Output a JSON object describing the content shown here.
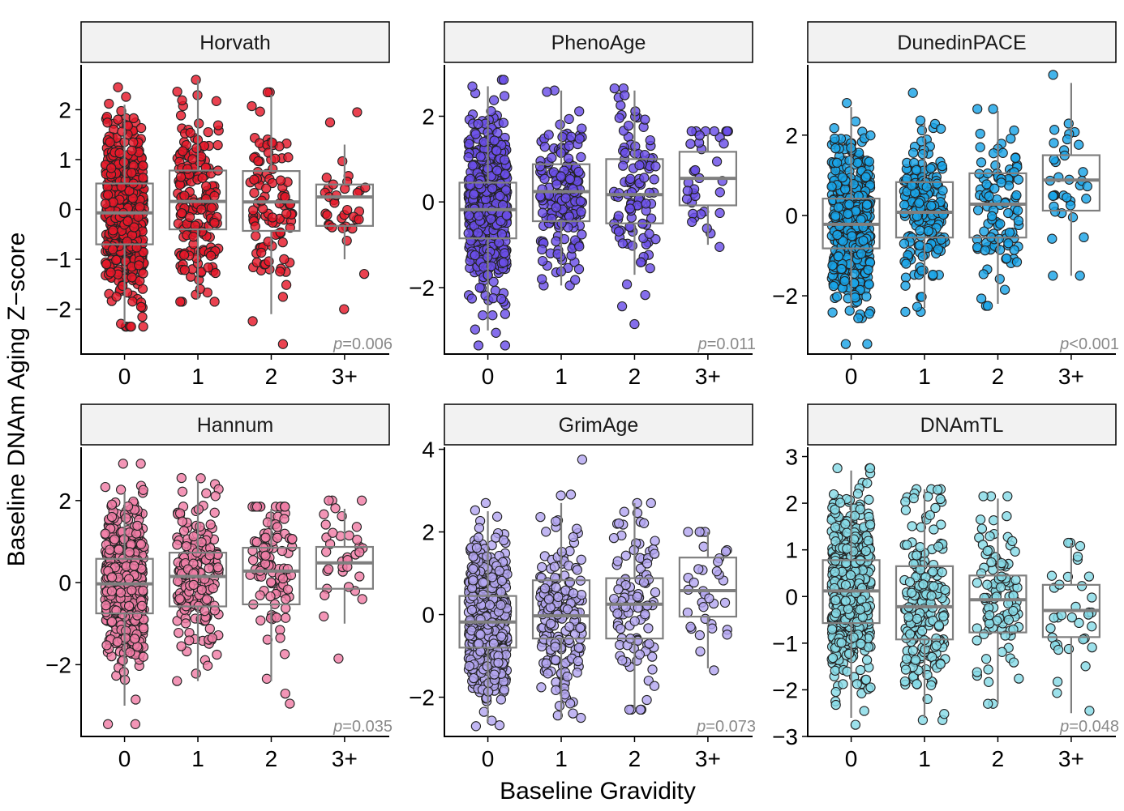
{
  "figure": {
    "ylabel": "Baseline DNAm Aging Z−score",
    "xlabel": "Baseline Gravidity"
  },
  "chart_data": [
    {
      "type": "box",
      "title": "Horvath",
      "categories": [
        "0",
        "1",
        "2",
        "3+"
      ],
      "ylim": [
        -2.9,
        2.9
      ],
      "yticks": [
        -2,
        -1,
        0,
        1,
        2
      ],
      "ytick_labels": [
        "−2",
        "−1",
        "0",
        "1",
        "2"
      ],
      "color": "#e5182a",
      "n_points": [
        520,
        180,
        100,
        35
      ],
      "boxes": [
        {
          "q1": -0.7,
          "median": -0.07,
          "q3": 0.52,
          "whisker_low": -2.3,
          "whisker_high": 2.1
        },
        {
          "q1": -0.4,
          "median": 0.16,
          "q3": 0.78,
          "whisker_low": -1.8,
          "whisker_high": 2.6
        },
        {
          "q1": -0.43,
          "median": 0.15,
          "q3": 0.77,
          "whisker_low": -2.1,
          "whisker_high": 2.3
        },
        {
          "q1": -0.33,
          "median": 0.25,
          "q3": 0.5,
          "whisker_low": -1.0,
          "whisker_high": 1.3
        }
      ],
      "extremes": [
        [
          -2.35,
          2.45
        ],
        [
          -1.85,
          2.6
        ],
        [
          -2.7,
          2.35
        ],
        [
          -2.0,
          1.95
        ]
      ],
      "p_prefix": "p",
      "p_text": "=0.006"
    },
    {
      "type": "box",
      "title": "PhenoAge",
      "categories": [
        "0",
        "1",
        "2",
        "3+"
      ],
      "ylim": [
        -3.55,
        3.2
      ],
      "yticks": [
        -2,
        0,
        2
      ],
      "ytick_labels": [
        "−2",
        "0",
        "2"
      ],
      "color": "#6a4ee8",
      "n_points": [
        520,
        180,
        100,
        35
      ],
      "boxes": [
        {
          "q1": -0.85,
          "median": -0.18,
          "q3": 0.45,
          "whisker_low": -3.0,
          "whisker_high": 2.7
        },
        {
          "q1": -0.45,
          "median": 0.24,
          "q3": 0.88,
          "whisker_low": -1.95,
          "whisker_high": 2.6
        },
        {
          "q1": -0.5,
          "median": 0.17,
          "q3": 1.0,
          "whisker_low": -1.7,
          "whisker_high": 2.6
        },
        {
          "q1": -0.08,
          "median": 0.55,
          "q3": 1.17,
          "whisker_low": -1.0,
          "whisker_high": 1.6
        }
      ],
      "extremes": [
        [
          -3.35,
          2.85
        ],
        [
          -1.95,
          2.6
        ],
        [
          -2.85,
          2.65
        ],
        [
          -1.05,
          1.65
        ]
      ],
      "p_prefix": "p",
      "p_text": "=0.011"
    },
    {
      "type": "box",
      "title": "DunedinPACE",
      "categories": [
        "0",
        "1",
        "2",
        "3+"
      ],
      "ylim": [
        -3.45,
        3.75
      ],
      "yticks": [
        -2,
        0,
        2
      ],
      "ytick_labels": [
        "−2",
        "0",
        "2"
      ],
      "color": "#1aa3e6",
      "n_points": [
        520,
        180,
        100,
        35
      ],
      "boxes": [
        {
          "q1": -0.82,
          "median": -0.22,
          "q3": 0.42,
          "whisker_low": -2.3,
          "whisker_high": 2.7
        },
        {
          "q1": -0.55,
          "median": 0.08,
          "q3": 0.83,
          "whisker_low": -2.3,
          "whisker_high": 2.3
        },
        {
          "q1": -0.55,
          "median": 0.28,
          "q3": 1.05,
          "whisker_low": -2.2,
          "whisker_high": 2.6
        },
        {
          "q1": 0.12,
          "median": 0.88,
          "q3": 1.5,
          "whisker_low": -1.5,
          "whisker_high": 3.3
        }
      ],
      "extremes": [
        [
          -3.2,
          2.8
        ],
        [
          -2.4,
          3.05
        ],
        [
          -2.25,
          2.65
        ],
        [
          -1.5,
          3.5
        ]
      ],
      "p_prefix": "p",
      "p_text": "<0.001"
    },
    {
      "type": "box",
      "title": "Hannum",
      "categories": [
        "0",
        "1",
        "2",
        "3+"
      ],
      "ylim": [
        -3.75,
        3.3
      ],
      "yticks": [
        -2,
        0,
        2
      ],
      "ytick_labels": [
        "−2",
        "0",
        "2"
      ],
      "color": "#f07ea6",
      "n_points": [
        520,
        180,
        100,
        35
      ],
      "boxes": [
        {
          "q1": -0.75,
          "median": -0.03,
          "q3": 0.58,
          "whisker_low": -3.0,
          "whisker_high": 2.2
        },
        {
          "q1": -0.58,
          "median": 0.15,
          "q3": 0.73,
          "whisker_low": -2.4,
          "whisker_high": 2.5
        },
        {
          "q1": -0.53,
          "median": 0.28,
          "q3": 0.85,
          "whisker_low": -2.4,
          "whisker_high": 1.8
        },
        {
          "q1": -0.15,
          "median": 0.48,
          "q3": 0.87,
          "whisker_low": -1.0,
          "whisker_high": 1.8
        }
      ],
      "extremes": [
        [
          -3.45,
          2.9
        ],
        [
          -2.4,
          2.55
        ],
        [
          -2.95,
          1.85
        ],
        [
          -1.85,
          2.0
        ]
      ],
      "p_prefix": "p",
      "p_text": "=0.035"
    },
    {
      "type": "box",
      "title": "GrimAge",
      "categories": [
        "0",
        "1",
        "2",
        "3+"
      ],
      "ylim": [
        -2.95,
        4.05
      ],
      "yticks": [
        -2,
        0,
        2,
        4
      ],
      "ytick_labels": [
        "−2",
        "0",
        "2",
        "4"
      ],
      "color": "#b3a6f0",
      "n_points": [
        520,
        180,
        100,
        35
      ],
      "boxes": [
        {
          "q1": -0.8,
          "median": -0.18,
          "q3": 0.45,
          "whisker_low": -2.6,
          "whisker_high": 2.5
        },
        {
          "q1": -0.58,
          "median": -0.03,
          "q3": 0.83,
          "whisker_low": -2.5,
          "whisker_high": 2.7
        },
        {
          "q1": -0.58,
          "median": 0.25,
          "q3": 0.88,
          "whisker_low": -2.3,
          "whisker_high": 2.7
        },
        {
          "q1": -0.05,
          "median": 0.58,
          "q3": 1.38,
          "whisker_low": -1.3,
          "whisker_high": 2.0
        }
      ],
      "extremes": [
        [
          -2.7,
          2.7
        ],
        [
          -2.5,
          3.75
        ],
        [
          -2.3,
          2.7
        ],
        [
          -1.35,
          2.0
        ]
      ],
      "p_prefix": "p",
      "p_text": "=0.073"
    },
    {
      "type": "box",
      "title": "DNAmTL",
      "categories": [
        "0",
        "1",
        "2",
        "3+"
      ],
      "ylim": [
        -3.0,
        3.2
      ],
      "yticks": [
        -3,
        -2,
        -1,
        0,
        1,
        2,
        3
      ],
      "ytick_labels": [
        "−3",
        "−2",
        "−1",
        "0",
        "1",
        "2",
        "3"
      ],
      "color": "#86dbe6",
      "n_points": [
        520,
        180,
        100,
        35
      ],
      "boxes": [
        {
          "q1": -0.57,
          "median": 0.12,
          "q3": 0.78,
          "whisker_low": -2.6,
          "whisker_high": 2.7
        },
        {
          "q1": -0.92,
          "median": -0.22,
          "q3": 0.65,
          "whisker_low": -2.6,
          "whisker_high": 2.3
        },
        {
          "q1": -0.77,
          "median": -0.07,
          "q3": 0.45,
          "whisker_low": -2.3,
          "whisker_high": 2.1
        },
        {
          "q1": -0.87,
          "median": -0.3,
          "q3": 0.25,
          "whisker_low": -2.5,
          "whisker_high": 1.15
        }
      ],
      "extremes": [
        [
          -2.75,
          2.75
        ],
        [
          -2.65,
          2.3
        ],
        [
          -2.3,
          2.15
        ],
        [
          -2.45,
          1.15
        ]
      ],
      "p_prefix": "p",
      "p_text": "=0.048"
    }
  ]
}
